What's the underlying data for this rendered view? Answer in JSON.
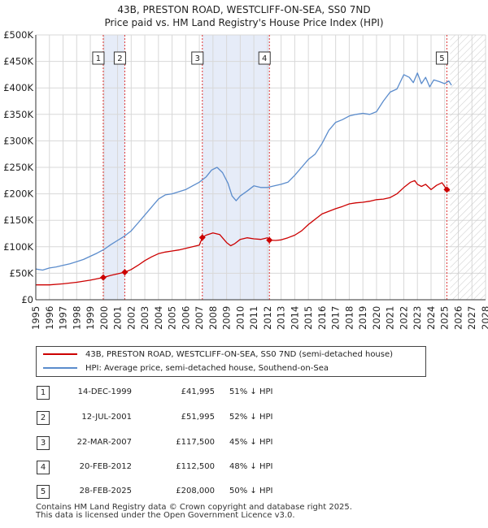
{
  "chart_data": {
    "type": "line",
    "title": "43B, PRESTON ROAD, WESTCLIFF-ON-SEA, SS0 7ND",
    "subtitle": "Price paid vs. HM Land Registry's House Price Index (HPI)",
    "xlim": [
      1995,
      2028
    ],
    "ylim": [
      0,
      500000
    ],
    "xticks": [
      1995,
      1996,
      1997,
      1998,
      1999,
      2000,
      2001,
      2002,
      2003,
      2004,
      2005,
      2006,
      2007,
      2008,
      2009,
      2010,
      2011,
      2012,
      2013,
      2014,
      2015,
      2016,
      2017,
      2018,
      2019,
      2020,
      2021,
      2022,
      2023,
      2024,
      2025,
      2026,
      2027,
      2028
    ],
    "xtick_labels": [
      "1995",
      "1996",
      "1997",
      "1998",
      "1999",
      "2000",
      "2001",
      "2002",
      "2003",
      "2004",
      "2005",
      "2006",
      "2007",
      "2008",
      "2009",
      "2010",
      "2011",
      "2012",
      "2013",
      "2014",
      "2015",
      "2016",
      "2017",
      "2018",
      "2019",
      "2020",
      "2021",
      "2022",
      "2023",
      "2024",
      "2025",
      "2026",
      "2027",
      "2028"
    ],
    "yticks": [
      0,
      50000,
      100000,
      150000,
      200000,
      250000,
      300000,
      350000,
      400000,
      450000,
      500000
    ],
    "ytick_labels": [
      "£0",
      "£50K",
      "£100K",
      "£150K",
      "£200K",
      "£250K",
      "£300K",
      "£350K",
      "£400K",
      "£450K",
      "£500K"
    ],
    "grid": true,
    "forecast_start": 2025.4,
    "series": [
      {
        "name": "43B, PRESTON ROAD, WESTCLIFF-ON-SEA, SS0 7ND (semi-detached house)",
        "color": "#cc0000",
        "x": [
          1995.0,
          1996.0,
          1997.0,
          1998.0,
          1999.0,
          1999.95,
          2000.5,
          2001.0,
          2001.53,
          2002.0,
          2002.5,
          2003.0,
          2003.5,
          2004.0,
          2004.5,
          2005.0,
          2005.5,
          2006.0,
          2006.5,
          2007.0,
          2007.22,
          2007.5,
          2008.0,
          2008.5,
          2009.0,
          2009.3,
          2009.6,
          2010.0,
          2010.5,
          2011.0,
          2011.5,
          2012.0,
          2012.14,
          2012.6,
          2013.0,
          2013.5,
          2014.0,
          2014.5,
          2015.0,
          2015.5,
          2016.0,
          2016.5,
          2017.0,
          2017.5,
          2018.0,
          2018.5,
          2019.0,
          2019.5,
          2020.0,
          2020.5,
          2021.0,
          2021.5,
          2022.0,
          2022.5,
          2022.8,
          2023.0,
          2023.3,
          2023.6,
          2024.0,
          2024.4,
          2024.8,
          2025.16,
          2025.35
        ],
        "y": [
          28000,
          28000,
          30000,
          33000,
          37000,
          41995,
          46000,
          49000,
          51995,
          57000,
          65000,
          74000,
          81000,
          87000,
          90000,
          92000,
          94000,
          97000,
          100000,
          103000,
          117500,
          122000,
          126000,
          123000,
          108000,
          102000,
          106000,
          114000,
          117000,
          115000,
          114000,
          117000,
          112500,
          112000,
          113000,
          117000,
          122000,
          130000,
          142000,
          152000,
          162000,
          167000,
          172000,
          176000,
          181000,
          183000,
          184000,
          186000,
          189000,
          190000,
          193000,
          200000,
          212000,
          222000,
          225000,
          218000,
          214000,
          218000,
          208000,
          216000,
          221000,
          208000,
          205000
        ]
      },
      {
        "name": "HPI: Average price, semi-detached house, Southend-on-Sea",
        "color": "#5b8ccc",
        "x": [
          1995.0,
          1995.5,
          1996.0,
          1996.5,
          1997.0,
          1997.5,
          1998.0,
          1998.5,
          1999.0,
          1999.5,
          2000.0,
          2000.5,
          2001.0,
          2001.5,
          2002.0,
          2002.5,
          2003.0,
          2003.5,
          2004.0,
          2004.5,
          2005.0,
          2005.5,
          2006.0,
          2006.5,
          2007.0,
          2007.5,
          2007.9,
          2008.3,
          2008.7,
          2009.1,
          2009.4,
          2009.7,
          2010.0,
          2010.5,
          2011.0,
          2011.5,
          2012.0,
          2012.5,
          2013.0,
          2013.5,
          2014.0,
          2014.5,
          2015.0,
          2015.5,
          2016.0,
          2016.5,
          2017.0,
          2017.5,
          2018.0,
          2018.5,
          2019.0,
          2019.5,
          2020.0,
          2020.5,
          2021.0,
          2021.5,
          2022.0,
          2022.4,
          2022.7,
          2023.0,
          2023.3,
          2023.6,
          2023.9,
          2024.2,
          2024.6,
          2025.0,
          2025.3,
          2025.5
        ],
        "y": [
          58000,
          56000,
          60000,
          62000,
          65000,
          68000,
          72000,
          76000,
          82000,
          88000,
          95000,
          104000,
          112000,
          120000,
          130000,
          145000,
          160000,
          175000,
          190000,
          198000,
          200000,
          204000,
          208000,
          215000,
          222000,
          232000,
          245000,
          250000,
          240000,
          220000,
          196000,
          187000,
          196000,
          205000,
          215000,
          212000,
          212000,
          215000,
          218000,
          222000,
          235000,
          250000,
          265000,
          275000,
          295000,
          320000,
          335000,
          340000,
          347000,
          350000,
          352000,
          350000,
          355000,
          375000,
          392000,
          398000,
          425000,
          420000,
          410000,
          428000,
          408000,
          420000,
          402000,
          415000,
          412000,
          408000,
          413000,
          405000
        ]
      }
    ],
    "transactions": [
      {
        "num": "1",
        "x": 1999.95,
        "y": 41995,
        "date": "14-DEC-1999",
        "price": "£41,995",
        "hpi": "51% ↓ HPI"
      },
      {
        "num": "2",
        "x": 2001.53,
        "y": 51995,
        "date": "12-JUL-2001",
        "price": "£51,995",
        "hpi": "52% ↓ HPI"
      },
      {
        "num": "3",
        "x": 2007.22,
        "y": 117500,
        "date": "22-MAR-2007",
        "price": "£117,500",
        "hpi": "45% ↓ HPI"
      },
      {
        "num": "4",
        "x": 2012.14,
        "y": 112500,
        "date": "20-FEB-2012",
        "price": "£112,500",
        "hpi": "48% ↓ HPI"
      },
      {
        "num": "5",
        "x": 2025.16,
        "y": 208000,
        "date": "28-FEB-2025",
        "price": "£208,000",
        "hpi": "50% ↓ HPI"
      }
    ],
    "shaded_spans": [
      [
        1999.95,
        2001.53
      ],
      [
        2007.22,
        2012.14
      ]
    ]
  },
  "legend": {
    "property_label": "43B, PRESTON ROAD, WESTCLIFF-ON-SEA, SS0 7ND (semi-detached house)",
    "hpi_label": "HPI: Average price, semi-detached house, Southend-on-Sea"
  },
  "footer": {
    "line1": "Contains HM Land Registry data © Crown copyright and database right 2025.",
    "line2": "This data is licensed under the Open Government Licence v3.0."
  }
}
